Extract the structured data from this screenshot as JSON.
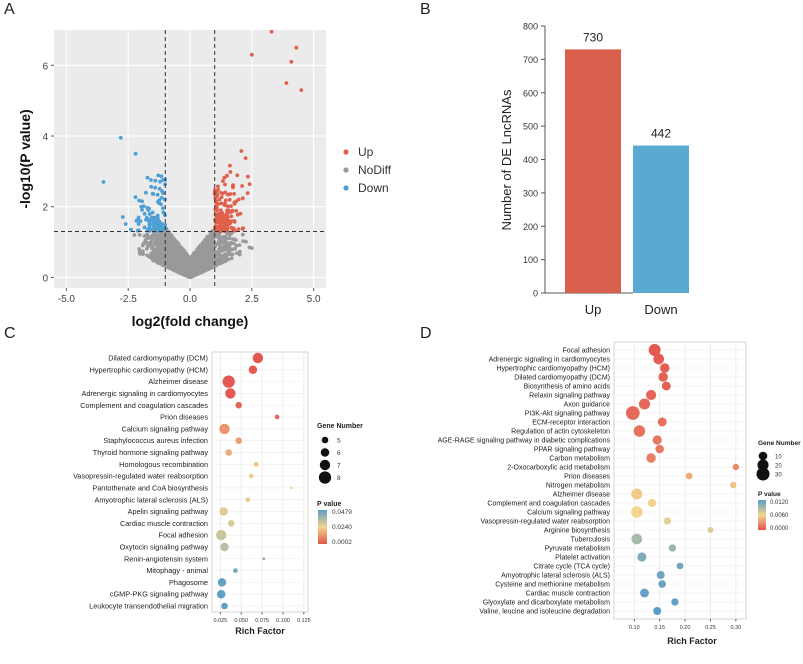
{
  "panel_labels": [
    "A",
    "B",
    "C",
    "D"
  ],
  "colors": {
    "up": "#e0604b",
    "nodiff": "#999999",
    "down": "#4e9fd6",
    "bar_up": "#d9604d",
    "bar_down": "#5aa9d3",
    "gradient": [
      "#5b9ec8",
      "#f1d58f",
      "#e2554f"
    ]
  },
  "chart_data": [
    {
      "panel": "A",
      "type": "scatter",
      "title": "",
      "xlabel": "log2(fold change)",
      "ylabel": "-log10(P value)",
      "xlim": [
        -5.5,
        5.5
      ],
      "ylim": [
        -0.3,
        7
      ],
      "xticks": [
        "-5.0",
        "-2.5",
        "0.0",
        "2.5",
        "5.0"
      ],
      "yticks": [
        "0",
        "2",
        "4",
        "6"
      ],
      "thresholds": {
        "x": [
          -1,
          1
        ],
        "y": 1.3
      },
      "grid": true,
      "legend_position": "right",
      "series": [
        {
          "name": "Up",
          "count": 730
        },
        {
          "name": "NoDiff"
        },
        {
          "name": "Down",
          "count": 442
        }
      ],
      "highlight_points": [
        {
          "x": 3.3,
          "y": 6.95
        },
        {
          "x": 4.3,
          "y": 6.5
        },
        {
          "x": 2.5,
          "y": 6.3
        },
        {
          "x": 4.1,
          "y": 6.1
        },
        {
          "x": 3.9,
          "y": 5.5
        },
        {
          "x": 4.5,
          "y": 5.3
        },
        {
          "x": -2.8,
          "y": 3.95
        },
        {
          "x": -2.2,
          "y": 3.5
        },
        {
          "x": -3.5,
          "y": 2.7
        }
      ]
    },
    {
      "panel": "B",
      "type": "bar",
      "categories": [
        "Up",
        "Down"
      ],
      "values": [
        730,
        442
      ],
      "data_labels": [
        "730",
        "442"
      ],
      "ylabel": "Number of DE LncRNAs",
      "xlabel": "",
      "ylim": [
        0,
        800
      ],
      "yticks": [
        "0",
        "100",
        "200",
        "300",
        "400",
        "500",
        "600",
        "700",
        "800"
      ]
    },
    {
      "panel": "C",
      "type": "scatter",
      "xlabel": "Rich Factor",
      "xlim": [
        0.015,
        0.13
      ],
      "xticks": [
        "0.025",
        "0.050",
        "0.075",
        "0.100",
        "0.125"
      ],
      "size_legend_title": "Gene Number",
      "size_legend": [
        5,
        6,
        7,
        8
      ],
      "color_legend_title": "P value",
      "color_legend": [
        "0.0479",
        "0.0240",
        "0.0002"
      ],
      "pmax": 0.0479,
      "grid": true,
      "legend_position": "right",
      "terms": [
        {
          "name": "Dilated cardiomyopathy (DCM)",
          "x": 0.07,
          "genes": 7,
          "p": 0.0005
        },
        {
          "name": "Hypertrophic cardiomyopathy (HCM)",
          "x": 0.064,
          "genes": 6,
          "p": 0.001
        },
        {
          "name": "Alzheimer disease",
          "x": 0.035,
          "genes": 8,
          "p": 0.0008
        },
        {
          "name": "Adrenergic signaling in cardiomyocytes",
          "x": 0.037,
          "genes": 7,
          "p": 0.001
        },
        {
          "name": "Complement and coagulation cascades",
          "x": 0.047,
          "genes": 5,
          "p": 0.003
        },
        {
          "name": "Prion diseases",
          "x": 0.093,
          "genes": 4,
          "p": 0.004
        },
        {
          "name": "Calcium signaling pathway",
          "x": 0.03,
          "genes": 7,
          "p": 0.012
        },
        {
          "name": "Staphylococcus aureus infection",
          "x": 0.047,
          "genes": 5,
          "p": 0.014
        },
        {
          "name": "Thyroid hormone signaling pathway",
          "x": 0.035,
          "genes": 5,
          "p": 0.016
        },
        {
          "name": "Homologous recombination",
          "x": 0.068,
          "genes": 4,
          "p": 0.02
        },
        {
          "name": "Vasopressin-regulated water reabsorption",
          "x": 0.062,
          "genes": 4,
          "p": 0.022
        },
        {
          "name": "Pantothenate and CoA biosynthesis",
          "x": 0.11,
          "genes": 3,
          "p": 0.024
        },
        {
          "name": "Amyotrophic lateral sclerosis (ALS)",
          "x": 0.058,
          "genes": 4,
          "p": 0.026
        },
        {
          "name": "Apelin signaling pathway",
          "x": 0.029,
          "genes": 6,
          "p": 0.027
        },
        {
          "name": "Cardiac muscle contraction",
          "x": 0.038,
          "genes": 5,
          "p": 0.028
        },
        {
          "name": "Focal adhesion",
          "x": 0.026,
          "genes": 7,
          "p": 0.03
        },
        {
          "name": "Oxytocin signaling pathway",
          "x": 0.03,
          "genes": 6,
          "p": 0.033
        },
        {
          "name": "Renin-angiotensin system",
          "x": 0.077,
          "genes": 3,
          "p": 0.04
        },
        {
          "name": "Mitophagy - animal",
          "x": 0.043,
          "genes": 4,
          "p": 0.044
        },
        {
          "name": "Phagosome",
          "x": 0.027,
          "genes": 6,
          "p": 0.046
        },
        {
          "name": "cGMP-PKG signaling pathway",
          "x": 0.026,
          "genes": 6,
          "p": 0.047
        },
        {
          "name": "Leukocyte transendothelial migration",
          "x": 0.03,
          "genes": 5,
          "p": 0.0475
        }
      ]
    },
    {
      "panel": "D",
      "type": "scatter",
      "xlabel": "Rich Factor",
      "xlim": [
        0.06,
        0.32
      ],
      "xticks": [
        "0.10",
        "0.15",
        "0.20",
        "0.25",
        "0.30"
      ],
      "size_legend_title": "Gene Number",
      "size_legend": [
        10,
        20,
        30
      ],
      "color_legend_title": "P value",
      "color_legend": [
        "0.0120",
        "0.0060",
        "0.0000"
      ],
      "pmax": 0.012,
      "grid": true,
      "legend_position": "right",
      "terms": [
        {
          "name": "Focal adhesion",
          "x": 0.14,
          "genes": 24,
          "p": 0.0002
        },
        {
          "name": "Adrenergic signaling in cardiomyocytes",
          "x": 0.148,
          "genes": 18,
          "p": 0.0003
        },
        {
          "name": "Hypertrophic cardiomyopathy (HCM)",
          "x": 0.16,
          "genes": 13,
          "p": 0.0004
        },
        {
          "name": "Dilated cardiomyopathy (DCM)",
          "x": 0.157,
          "genes": 13,
          "p": 0.0005
        },
        {
          "name": "Biosynthesis of amino acids",
          "x": 0.163,
          "genes": 11,
          "p": 0.0006
        },
        {
          "name": "Relaxin signaling pathway",
          "x": 0.133,
          "genes": 16,
          "p": 0.0008
        },
        {
          "name": "Axon guidance",
          "x": 0.12,
          "genes": 20,
          "p": 0.0009
        },
        {
          "name": "PI3K-Akt signaling pathway",
          "x": 0.097,
          "genes": 34,
          "p": 0.001
        },
        {
          "name": "ECM-receptor interaction",
          "x": 0.155,
          "genes": 11,
          "p": 0.0012
        },
        {
          "name": "Regulation of actin cytoskeleton",
          "x": 0.11,
          "genes": 22,
          "p": 0.0014
        },
        {
          "name": "AGE-RAGE signaling pathway in diabetic complications",
          "x": 0.145,
          "genes": 12,
          "p": 0.0016
        },
        {
          "name": "PPAR signaling pathway",
          "x": 0.15,
          "genes": 10,
          "p": 0.0018
        },
        {
          "name": "Carbon metabolism",
          "x": 0.133,
          "genes": 13,
          "p": 0.002
        },
        {
          "name": "2-Oxocarboxylic acid metabolism",
          "x": 0.3,
          "genes": 4,
          "p": 0.0025
        },
        {
          "name": "Prion diseases",
          "x": 0.208,
          "genes": 5,
          "p": 0.004
        },
        {
          "name": "Nitrogen metabolism",
          "x": 0.295,
          "genes": 4,
          "p": 0.005
        },
        {
          "name": "Alzheimer disease",
          "x": 0.105,
          "genes": 20,
          "p": 0.0055
        },
        {
          "name": "Complement and coagulation cascades",
          "x": 0.135,
          "genes": 9,
          "p": 0.0058
        },
        {
          "name": "Calcium signaling pathway",
          "x": 0.105,
          "genes": 22,
          "p": 0.006
        },
        {
          "name": "Vasopressin-regulated water reabsorption",
          "x": 0.165,
          "genes": 6,
          "p": 0.0065
        },
        {
          "name": "Arginine biosynthesis",
          "x": 0.25,
          "genes": 3,
          "p": 0.007
        },
        {
          "name": "Tuberculosis",
          "x": 0.105,
          "genes": 18,
          "p": 0.009
        },
        {
          "name": "Pyruvate metabolism",
          "x": 0.175,
          "genes": 6,
          "p": 0.0095
        },
        {
          "name": "Platelet activation",
          "x": 0.115,
          "genes": 12,
          "p": 0.0105
        },
        {
          "name": "Citrate cycle (TCA cycle)",
          "x": 0.19,
          "genes": 5,
          "p": 0.011
        },
        {
          "name": "Amyotrophic lateral sclerosis (ALS)",
          "x": 0.152,
          "genes": 8,
          "p": 0.0112
        },
        {
          "name": "Cysteine and methionine metabolism",
          "x": 0.155,
          "genes": 7,
          "p": 0.0114
        },
        {
          "name": "Cardiac muscle contraction",
          "x": 0.12,
          "genes": 11,
          "p": 0.0116
        },
        {
          "name": "Glyoxylate and dicarboxylate metabolism",
          "x": 0.18,
          "genes": 6,
          "p": 0.0118
        },
        {
          "name": "Valine, leucine and isoleucine degradation",
          "x": 0.145,
          "genes": 8,
          "p": 0.012
        }
      ]
    }
  ]
}
